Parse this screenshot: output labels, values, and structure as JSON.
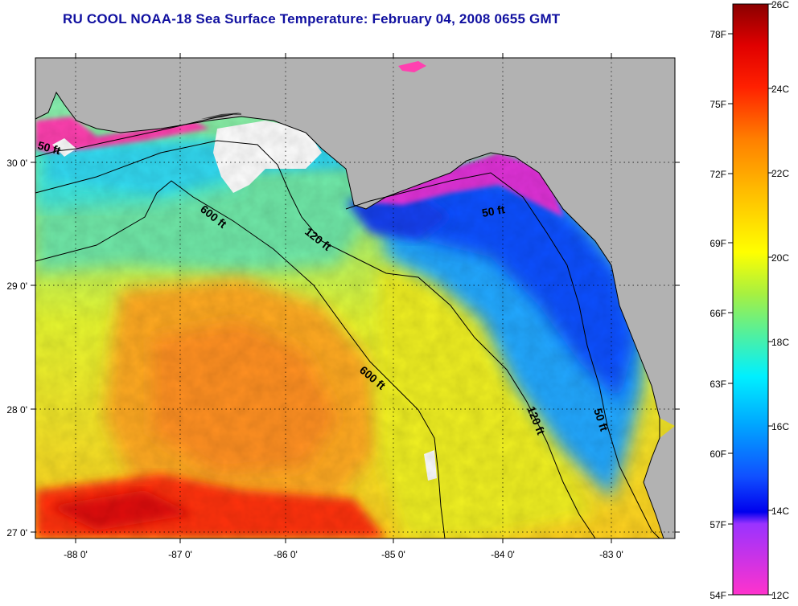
{
  "title": "RU COOL  NOAA-18  Sea Surface Temperature:  February 04, 2008 0655 GMT",
  "map": {
    "lon_labels": [
      "-88 0'",
      "-87 0'",
      "-86 0'",
      "-85 0'",
      "-84 0'",
      "-83 0'"
    ],
    "lat_labels": [
      "30 0'",
      "29 0'",
      "28 0'",
      "27 0'"
    ],
    "lon_range": [
      -88.3,
      -82.4
    ],
    "lat_range": [
      26.95,
      30.9
    ],
    "contours": [
      {
        "label": "50 ft"
      },
      {
        "label": "600 ft"
      },
      {
        "label": "120 ft"
      },
      {
        "label": "50 ft"
      },
      {
        "label": "600 ft"
      },
      {
        "label": "120 ft"
      },
      {
        "label": "50 ft"
      }
    ],
    "colors": {
      "land": "#b2b2b2",
      "cloud": "#ffffff",
      "gridline": "#000000"
    }
  },
  "colorbar": {
    "fahrenheit_labels": [
      "78F",
      "75F",
      "72F",
      "69F",
      "66F",
      "63F",
      "60F",
      "57F",
      "54F"
    ],
    "celsius_labels": [
      "26C",
      "24C",
      "22C",
      "20C",
      "18C",
      "16C",
      "14C",
      "12C"
    ],
    "celsius_range": [
      12,
      26
    ]
  }
}
